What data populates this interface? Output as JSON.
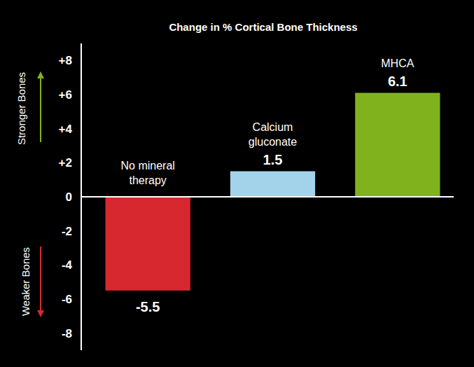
{
  "chart_data": {
    "type": "bar",
    "title": "Change in % Cortical Bone Thickness",
    "categories": [
      "No mineral therapy",
      "Calcium gluconate",
      "MHCA"
    ],
    "values": [
      -5.5,
      1.5,
      6.1
    ],
    "colors": [
      "#d7282f",
      "#a3d3ea",
      "#80b21e"
    ],
    "ylim": [
      -9,
      9
    ],
    "yticks": [
      {
        "value": 8,
        "label": "+8"
      },
      {
        "value": 6,
        "label": "+6"
      },
      {
        "value": 4,
        "label": "+4"
      },
      {
        "value": 2,
        "label": "+2"
      },
      0,
      -2,
      -4,
      -6,
      -8
    ],
    "grid": false,
    "data_labels": true,
    "annotations": [
      "Stronger Bones",
      "Weaker Bones"
    ]
  }
}
